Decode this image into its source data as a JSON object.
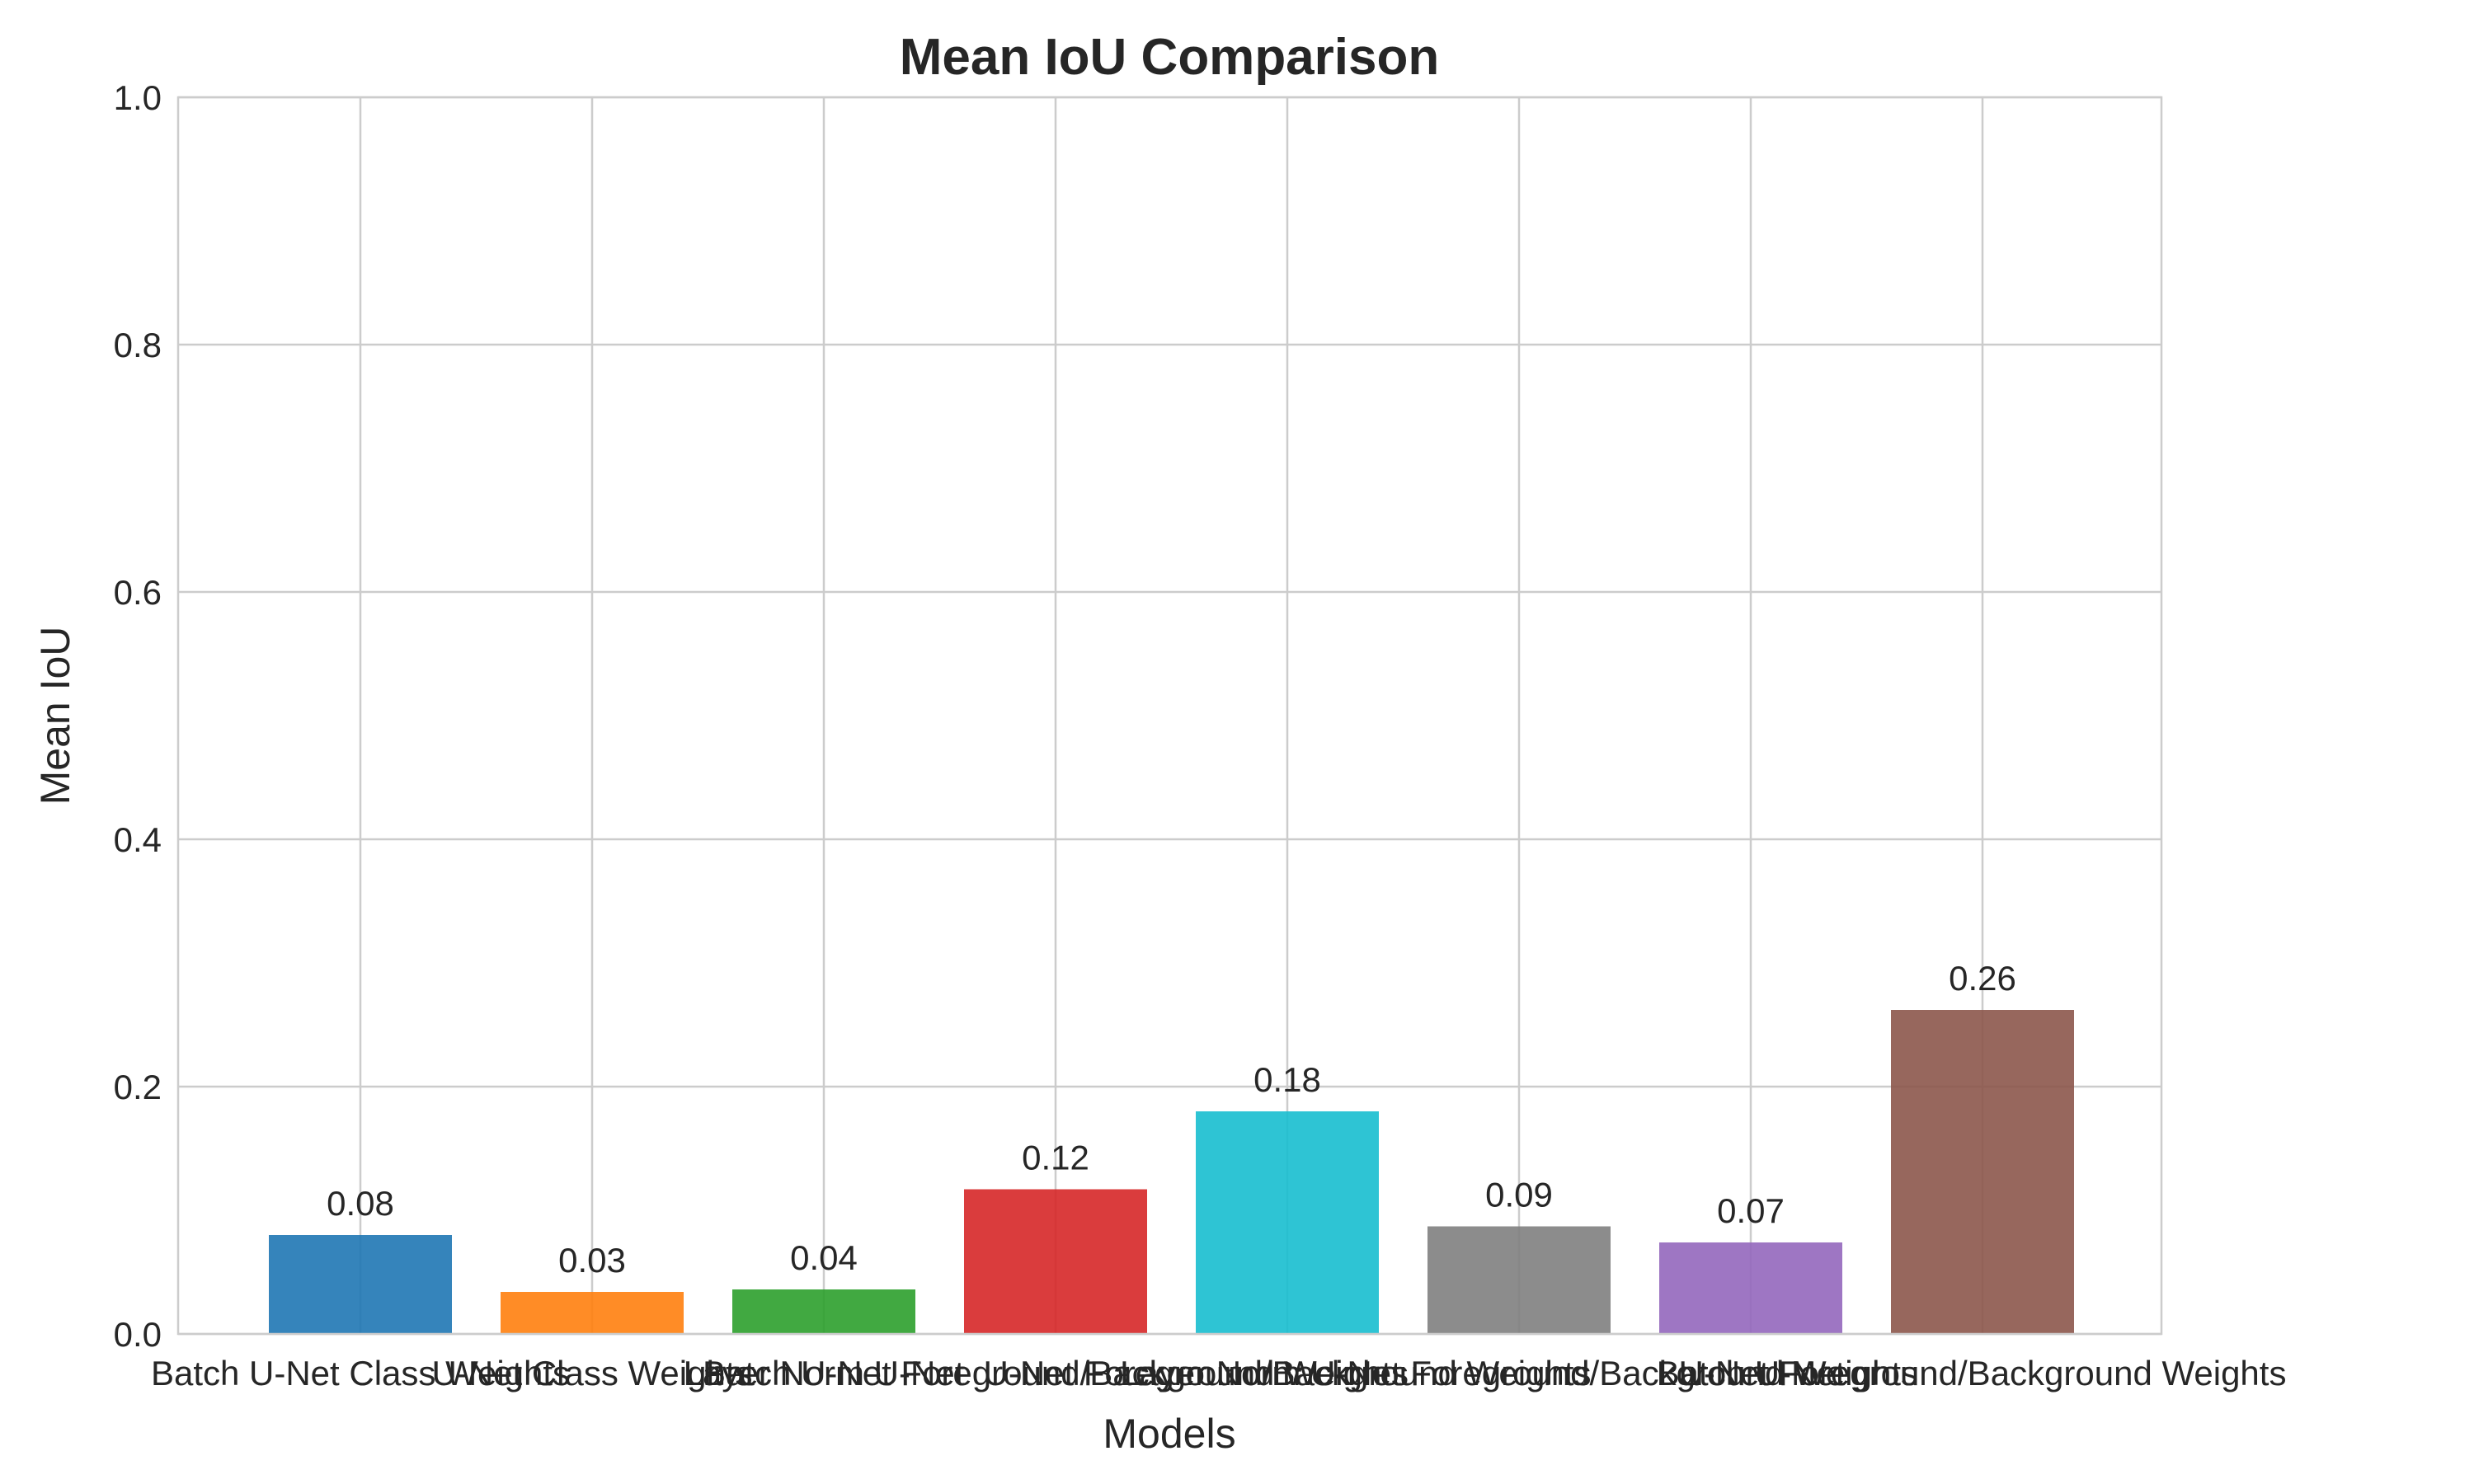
{
  "chart_data": {
    "type": "bar",
    "title": "Mean IoU Comparison",
    "xlabel": "Models",
    "ylabel": "Mean IoU",
    "ylim": [
      0,
      1.0
    ],
    "yticks": [
      "0.0",
      "0.2",
      "0.4",
      "0.6",
      "0.8",
      "1.0"
    ],
    "grid": true,
    "categories": [
      "Batch U-Net Class Weights",
      "U-Net Class Weights",
      "Layer Norm U-Net",
      "Batch U-Net Foreground/Background Weights",
      "U-Net Foreground/Background Weights",
      "Layer Norm U-Net Foreground/Background Weights",
      "Batch U-Net",
      "U-Net Foreground/Background Weights"
    ],
    "values": [
      0.08,
      0.034,
      0.036,
      0.117,
      0.18,
      0.087,
      0.074,
      0.262
    ],
    "value_labels": [
      "0.08",
      "0.03",
      "0.04",
      "0.12",
      "0.18",
      "0.09",
      "0.07",
      "0.26"
    ],
    "colors": [
      "#1f77b4",
      "#ff7f0e",
      "#2ca02c",
      "#d62728",
      "#17becf",
      "#7f7f7f",
      "#9467bd",
      "#8c564b"
    ]
  }
}
